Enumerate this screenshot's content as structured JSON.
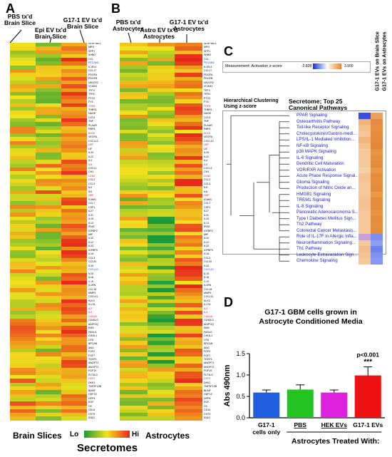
{
  "panels": {
    "a": {
      "letter": "A",
      "headers": [
        "PBS tx'd Brain Slice",
        "Epi EV tx'd Brain Slice",
        "G17-1 EV tx'd Brain Slice"
      ],
      "bottom": "Brain Slices"
    },
    "b": {
      "letter": "B",
      "headers": [
        "PBS tx'd Astrocytes",
        "Astro EV tx'd Astrocytes",
        "G17-1 EV tx'd Astrocytes"
      ],
      "bottom": "Astrocytes"
    },
    "c": {
      "letter": "C",
      "measurement": "Measurement: Activation z-score",
      "scale_min": "-2.828",
      "scale_max": "3.900",
      "clustering": "Hierarchical Clustering Using z-score",
      "title": "Secretome; Top 25 Canonical Pathways",
      "col_headers": [
        "G17-1 EVs on Brain Slice",
        "G17-1 EVs on Astrocytes"
      ],
      "pathways": [
        "PPAR Signaling",
        "Osteoarthritis Pathway",
        "Toll-like Receptor Signaling",
        "Cholecystokinin/Gastrin-medi...",
        "LPS/IL-1 Mediated Inhibition...",
        "NF-κB Signaling",
        "p38 MAPK Signaling",
        "IL-6 Signaling",
        "Dendritic Cell Maturation",
        "VDR/RXR Activation",
        "Acute Phase Response Signal...",
        "Glioma Signaling",
        "Production of Nitric Oxide an...",
        "HMGB1 Signaling",
        "TREM1 Signaling",
        "IL-8 Signaling",
        "Pancreatic Adenocarcinoma S...",
        "Type I Diabetes Mellitus Sign...",
        "Th2 Pathway",
        "Colorectal Cancer Metastasis...",
        "Role of IL-17F in Allergic Infla...",
        "Neuroinflammation Signaling...",
        "Th1 Pathway",
        "Leukocyte Extravasation Sign...",
        "Chemokine Signaling"
      ],
      "cell_colors": [
        [
          "#3a4ee0",
          "#e9a060"
        ],
        [
          "#f2b27a",
          "#e48a40"
        ],
        [
          "#f3c08c",
          "#e9913f"
        ],
        [
          "#f4c79a",
          "#e58d3c"
        ],
        [
          "#f0b47c",
          "#e38a3b"
        ],
        [
          "#f3c492",
          "#e08538"
        ],
        [
          "#f4c898",
          "#e8963f"
        ],
        [
          "#f4c898",
          "#e4903e"
        ],
        [
          "#f4c898",
          "#e28b3c"
        ],
        [
          "#f6d1a8",
          "#e99848"
        ],
        [
          "#f3c391",
          "#e38d3d"
        ],
        [
          "#f4c898",
          "#e58f3e"
        ],
        [
          "#f4c898",
          "#e48c3b"
        ],
        [
          "#f4c898",
          "#ec9a44"
        ],
        [
          "#f3c492",
          "#e48d3c"
        ],
        [
          "#f3c391",
          "#e48d3c"
        ],
        [
          "#f4c898",
          "#e7933f"
        ],
        [
          "#f4c898",
          "#e48d3c"
        ],
        [
          "#f4c898",
          "#e58e3c"
        ],
        [
          "#f4c898",
          "#e48d3c"
        ],
        [
          "#c8a0d8",
          "#7a8ef0"
        ],
        [
          "#f4c898",
          "#8ea0f2"
        ],
        [
          "#f2bd8a",
          "#6c84ee"
        ],
        [
          "#f3c492",
          "#7f92f0"
        ],
        [
          "#f4c898",
          "#8898f2"
        ]
      ]
    },
    "d": {
      "letter": "D",
      "title_line1": "G17-1 GBM cells grown in",
      "title_line2": "Astrocyte Conditioned Media",
      "ylabel": "Abs 490nm",
      "xlabel": "Astrocytes Treated With:",
      "pvalue": "p<0.001",
      "stars": "***"
    }
  },
  "genes_a": [
    "SERPINE1",
    "MPO",
    "SPP1",
    "SHBG",
    "CCL",
    "PECAM1",
    "IL1RL1",
    "CCL17",
    "PDGFA",
    "PDGFB",
    "VAVCR2",
    "VCAM1",
    "TFF3",
    "TFRC",
    "PTX3",
    "FY4",
    "TGFA",
    "THBS1",
    "NAGE",
    "CCL5",
    "TNF",
    "PLAUR",
    "RBP4",
    "KLK6",
    "VEGFA",
    "CXCL12",
    "LEP",
    "LIF",
    "IL33",
    "IL22",
    "IL4",
    "IL8",
    "CXCL1",
    "CH1",
    "LCN2",
    "CCL2",
    "CCL3",
    "IL5",
    "IL6",
    "HGF",
    "ICAM1",
    "CCL7",
    "CSF1",
    "IL27",
    "IL31",
    "IL15",
    "IL13",
    "IFNG",
    "IGFBP2",
    "MIF",
    "IL32",
    "IL12",
    "IL33",
    "IGFBP3",
    "IL1A",
    "CCL3",
    "CCL20",
    "IL34",
    "CXCL10",
    "IL15",
    "IL18",
    "IL1B",
    "IL1RN",
    "CCL18",
    "MMP9",
    "CXCL11",
    "KLK3",
    "IL17A",
    "IL2",
    "IL3",
    "CXCL5",
    "CD40LG",
    "ADIPOQ",
    "EMS",
    "FASLG",
    "CHI3L1",
    "CFD",
    "BPCAN",
    "ANG",
    "FGF2",
    "FGF7",
    "TDGF1",
    "ANGPT1",
    "ANGPT2",
    "FGF19",
    "FLT3LG",
    "C5T3",
    "DKK1",
    "TNFSF13B",
    "BDNF",
    "GDF15",
    "DPP4",
    "EGF",
    "C5",
    "CD14",
    "CST3",
    "IDDO"
  ],
  "genes_b": [
    "SERPINE1",
    "MPO",
    "SPP1",
    "SHBG",
    "CCL",
    "PECAM1",
    "IL1RL1",
    "CCL17",
    "PDGFA",
    "PDGFB",
    "VAVCR2",
    "VCAM1",
    "TFF3",
    "TFRC",
    "PTX3",
    "FY4",
    "TGFA",
    "THBS1",
    "NAGE",
    "CCL5",
    "TNF",
    "PLAUR",
    "RBP4",
    "KLK6",
    "VEGFA",
    "CXCL12",
    "LEP",
    "LIF",
    "IL33",
    "IL22",
    "IL4",
    "IL8",
    "CXCL1",
    "CH1",
    "LCN2",
    "CCL2",
    "CCL3",
    "IL5",
    "IL6",
    "HGF",
    "ICAM1",
    "CCL7",
    "CSF1",
    "IL27",
    "IL31",
    "IL15",
    "IL13",
    "IFNG",
    "IGFBP2",
    "MIF",
    "IL32",
    "IL12",
    "IL33",
    "IGFBP3",
    "IL1A",
    "CCL3",
    "CCL20",
    "IL34",
    "CXCL10",
    "IL15",
    "IL18",
    "IL1B",
    "IL1RN",
    "CCL18",
    "MMP9",
    "CXCL11",
    "KLK3",
    "IL17A",
    "IL2",
    "IL3",
    "CXCL5",
    "CD40LG",
    "ADIPOQ",
    "EMS",
    "FASLG",
    "CHI3L1",
    "CFD",
    "BPCAN",
    "ANG",
    "FGF2",
    "FGF7",
    "TDGF1",
    "ANGPT1",
    "ANGPT2",
    "FGF19",
    "FLT3LG",
    "C5T3",
    "DKK1",
    "TNFSF13B",
    "BDNF",
    "GDF15",
    "DPP4",
    "EGF",
    "C5",
    "CD14",
    "CST3",
    "IDDO"
  ],
  "legend": {
    "lo": "Lo",
    "hi": "Hi",
    "caption": "Secretomes"
  },
  "colors": {
    "green": "#1a9a3a",
    "yellow": "#f2e21c",
    "red": "#e8261c",
    "blue_bar": "#1f5fe0",
    "green_bar": "#22c422",
    "magenta_bar": "#dd22dd",
    "red_bar": "#ee1111"
  },
  "chart_data": {
    "type": "bar",
    "title": "G17-1 GBM cells grown in Astrocyte Conditioned Media",
    "xlabel": "Astrocytes Treated With:",
    "ylabel": "Abs 490nm",
    "categories": [
      "G17-1 cells only",
      "PBS",
      "HEK EVs",
      "G17-1 EVs"
    ],
    "values": [
      0.59,
      0.66,
      0.59,
      0.99
    ],
    "errors": [
      0.06,
      0.11,
      0.06,
      0.2
    ],
    "colors": [
      "#1f5fe0",
      "#22c422",
      "#dd22dd",
      "#ee1111"
    ],
    "ylim": [
      0,
      1.5
    ],
    "yticks": [
      "0.0",
      "0.5",
      "1.0",
      "1.5"
    ],
    "annotation": {
      "category": "G17-1 EVs",
      "text": "p<0.001",
      "stars": "***"
    }
  }
}
